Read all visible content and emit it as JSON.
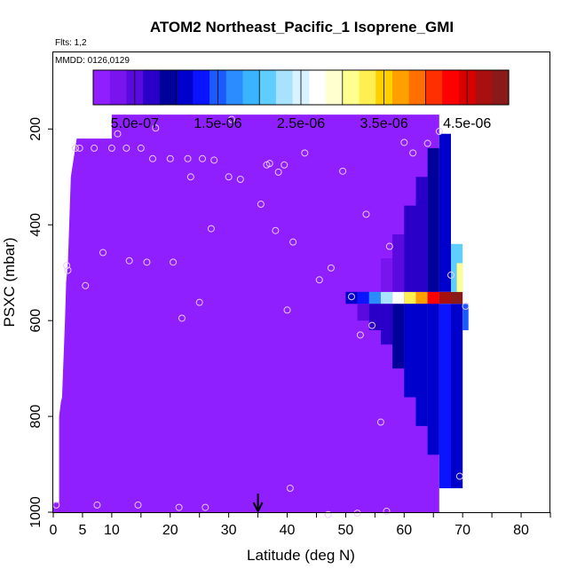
{
  "chart_data": {
    "type": "heatmap",
    "title": "ATOM2 Northeast_Pacific_1 Isoprene_GMI",
    "flights_text": "Flts: 1,2",
    "dates_text": "MMDD: 0126,0129",
    "xlabel": "Latitude (deg N)",
    "ylabel": "PSXC (mbar)",
    "xlim": [
      0,
      85
    ],
    "ylim": [
      1000,
      40
    ],
    "x_ticks": [
      0,
      5,
      10,
      20,
      30,
      40,
      50,
      60,
      70,
      80
    ],
    "y_ticks": [
      200,
      400,
      600,
      800,
      1000
    ],
    "colorbar": {
      "range": [
        0,
        5e-06
      ],
      "tick_values": [
        5e-07,
        1.5e-06,
        2.5e-06,
        3.5e-06,
        4.5e-06
      ],
      "tick_labels": [
        "5.0e-07",
        "1.5e-06",
        "2.5e-06",
        "3.5e-06",
        "4.5e-06"
      ],
      "colors": [
        "#8f1fff",
        "#7a14ee",
        "#5a0ade",
        "#2a00c8",
        "#00009a",
        "#0000cc",
        "#0a14ff",
        "#1a5aff",
        "#2a8cff",
        "#3ab4ff",
        "#60cdff",
        "#a8e2ff",
        "#d8f2ff",
        "#ffffff",
        "#ffffd0",
        "#ffff90",
        "#ffef50",
        "#ffd000",
        "#ffa000",
        "#ff7000",
        "#ff3000",
        "#ff0000",
        "#d80000",
        "#a81010",
        "#8a1a1a"
      ]
    },
    "field": {
      "background_value": 0,
      "background_color": "#8f1fff",
      "domain_top_outline": [
        [
          0,
          980
        ],
        [
          1,
          980
        ],
        [
          1,
          800
        ],
        [
          1.3,
          770
        ],
        [
          1.5,
          760
        ],
        [
          2,
          600
        ],
        [
          2.2,
          520
        ],
        [
          2.5,
          480
        ],
        [
          3,
          300
        ],
        [
          4,
          220
        ],
        [
          10,
          220
        ],
        [
          10,
          170
        ],
        [
          66,
          170
        ],
        [
          66,
          1000
        ],
        [
          0,
          1000
        ]
      ],
      "columns": [
        {
          "lat0": 50,
          "lat1": 52,
          "p0": 540,
          "p1": 565,
          "v": 1e-06
        },
        {
          "lat0": 52,
          "lat1": 54,
          "p0": 540,
          "p1": 565,
          "v": 1.3e-06
        },
        {
          "lat0": 52,
          "lat1": 54,
          "p0": 565,
          "p1": 600,
          "v": 5e-07
        },
        {
          "lat0": 54,
          "lat1": 56,
          "p0": 540,
          "p1": 565,
          "v": 1.8e-06
        },
        {
          "lat0": 54,
          "lat1": 56,
          "p0": 565,
          "p1": 620,
          "v": 7e-07
        },
        {
          "lat0": 56,
          "lat1": 58,
          "p0": 540,
          "p1": 565,
          "v": 2.3e-06
        },
        {
          "lat0": 56,
          "lat1": 58,
          "p0": 565,
          "p1": 650,
          "v": 8e-07
        },
        {
          "lat0": 56,
          "lat1": 58,
          "p0": 470,
          "p1": 540,
          "v": 4e-07
        },
        {
          "lat0": 58,
          "lat1": 60,
          "p0": 540,
          "p1": 565,
          "v": 2.8e-06
        },
        {
          "lat0": 58,
          "lat1": 60,
          "p0": 565,
          "p1": 700,
          "v": 9e-07
        },
        {
          "lat0": 58,
          "lat1": 60,
          "p0": 420,
          "p1": 540,
          "v": 6e-07
        },
        {
          "lat0": 60,
          "lat1": 62,
          "p0": 540,
          "p1": 565,
          "v": 3.3e-06
        },
        {
          "lat0": 60,
          "lat1": 62,
          "p0": 565,
          "p1": 760,
          "v": 1e-06
        },
        {
          "lat0": 60,
          "lat1": 62,
          "p0": 360,
          "p1": 540,
          "v": 7e-07
        },
        {
          "lat0": 62,
          "lat1": 64,
          "p0": 540,
          "p1": 565,
          "v": 3.8e-06
        },
        {
          "lat0": 62,
          "lat1": 64,
          "p0": 565,
          "p1": 820,
          "v": 1.1e-06
        },
        {
          "lat0": 62,
          "lat1": 64,
          "p0": 300,
          "p1": 540,
          "v": 8e-07
        },
        {
          "lat0": 64,
          "lat1": 66,
          "p0": 540,
          "p1": 565,
          "v": 4.3e-06
        },
        {
          "lat0": 64,
          "lat1": 66,
          "p0": 565,
          "p1": 880,
          "v": 1.2e-06
        },
        {
          "lat0": 64,
          "lat1": 66,
          "p0": 240,
          "p1": 540,
          "v": 9e-07
        },
        {
          "lat0": 66,
          "lat1": 68,
          "p0": 540,
          "p1": 565,
          "v": 4.7e-06
        },
        {
          "lat0": 66,
          "lat1": 68,
          "p0": 565,
          "p1": 950,
          "v": 1.3e-06
        },
        {
          "lat0": 66,
          "lat1": 68,
          "p0": 210,
          "p1": 540,
          "v": 1e-06
        },
        {
          "lat0": 68,
          "lat1": 70,
          "p0": 540,
          "p1": 565,
          "v": 4.9e-06
        },
        {
          "lat0": 68,
          "lat1": 70,
          "p0": 565,
          "p1": 950,
          "v": 1.2e-06
        },
        {
          "lat0": 68,
          "lat1": 70,
          "p0": 440,
          "p1": 540,
          "v": 2e-06
        },
        {
          "lat0": 70,
          "lat1": 71,
          "p0": 565,
          "p1": 620,
          "v": 1.6e-06
        },
        {
          "lat0": 69,
          "lat1": 70,
          "p0": 480,
          "p1": 540,
          "v": 3.2e-06
        }
      ]
    },
    "observations": [
      [
        0.5,
        985
      ],
      [
        2.3,
        485
      ],
      [
        2.5,
        495
      ],
      [
        3.8,
        240
      ],
      [
        4.5,
        240
      ],
      [
        5.5,
        527
      ],
      [
        7,
        240
      ],
      [
        7.5,
        985
      ],
      [
        8.5,
        458
      ],
      [
        10,
        240
      ],
      [
        11,
        210
      ],
      [
        12.5,
        240
      ],
      [
        13,
        475
      ],
      [
        14.5,
        985
      ],
      [
        15,
        240
      ],
      [
        16,
        478
      ],
      [
        17,
        262
      ],
      [
        17.5,
        198
      ],
      [
        20,
        262
      ],
      [
        20.5,
        478
      ],
      [
        21.5,
        990
      ],
      [
        22,
        595
      ],
      [
        23,
        262
      ],
      [
        23.5,
        300
      ],
      [
        25,
        562
      ],
      [
        25.5,
        262
      ],
      [
        26,
        990
      ],
      [
        27,
        408
      ],
      [
        27.5,
        265
      ],
      [
        30,
        300
      ],
      [
        30.5,
        180
      ],
      [
        32,
        305
      ],
      [
        35.5,
        357
      ],
      [
        36.5,
        275
      ],
      [
        37,
        272
      ],
      [
        38,
        412
      ],
      [
        38.5,
        290
      ],
      [
        39.5,
        275
      ],
      [
        40,
        578
      ],
      [
        40.5,
        950
      ],
      [
        41,
        436
      ],
      [
        43,
        250
      ],
      [
        45.5,
        515
      ],
      [
        47,
        1005
      ],
      [
        47.5,
        490
      ],
      [
        49.5,
        288
      ],
      [
        51,
        550
      ],
      [
        52,
        1002
      ],
      [
        52.5,
        630
      ],
      [
        53.5,
        378
      ],
      [
        54.5,
        610
      ],
      [
        56,
        812
      ],
      [
        57,
        998
      ],
      [
        57.5,
        445
      ],
      [
        60,
        228
      ],
      [
        61.5,
        250
      ],
      [
        64,
        230
      ],
      [
        66,
        205
      ],
      [
        68,
        505
      ],
      [
        69.5,
        925
      ],
      [
        70.5,
        570
      ]
    ],
    "marker_latitude": 35
  }
}
